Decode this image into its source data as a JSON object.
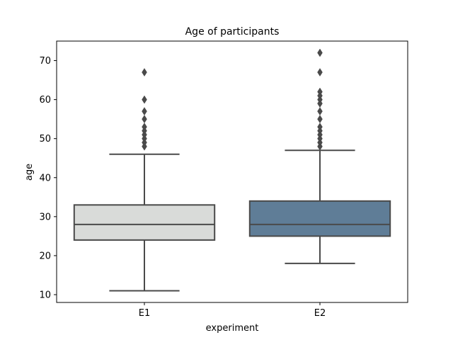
{
  "chart_data": {
    "type": "box",
    "title": "Age of participants",
    "xlabel": "experiment",
    "ylabel": "age",
    "ylim": [
      8,
      75
    ],
    "yticks": [
      10,
      20,
      30,
      40,
      50,
      60,
      70
    ],
    "grid": false,
    "categories": [
      "E1",
      "E2"
    ],
    "boxes": [
      {
        "category": "E1",
        "whisker_low": 11,
        "q1": 24,
        "median": 28,
        "q3": 33,
        "whisker_high": 46,
        "outliers": [
          48,
          49,
          50,
          51,
          52,
          53,
          55,
          57,
          60,
          67
        ],
        "color": "#d9dbd9"
      },
      {
        "category": "E2",
        "whisker_low": 18,
        "q1": 25,
        "median": 28,
        "q3": 34,
        "whisker_high": 47,
        "outliers": [
          48,
          49,
          50,
          51,
          52,
          53,
          55,
          57,
          59,
          60,
          61,
          62,
          67,
          72
        ],
        "color": "#5f7d97"
      }
    ],
    "line_color": "#4a4a4a"
  }
}
